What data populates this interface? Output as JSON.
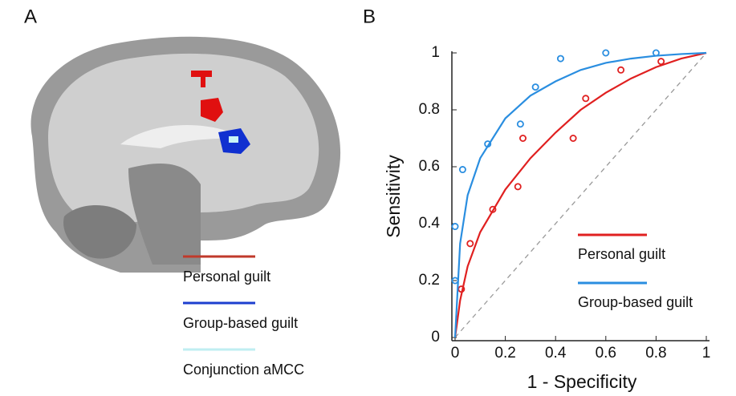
{
  "panel_labels": [
    "A",
    "B"
  ],
  "brain_legend": [
    {
      "name": "Personal guilt",
      "color": "#c0392b"
    },
    {
      "name": "Group-based guilt",
      "color": "#1d3fcf"
    },
    {
      "name": "Conjunction aMCC",
      "color": "#bfeef2"
    }
  ],
  "chart_data": {
    "type": "scatter",
    "x_label": "1 - Specificity",
    "y_label": "Sensitivity",
    "xlim": [
      0,
      1
    ],
    "ylim": [
      0,
      1
    ],
    "xticks": [
      0,
      0.2,
      0.4,
      0.6,
      0.8,
      1
    ],
    "yticks": [
      0,
      0.2,
      0.4,
      0.6,
      0.8,
      1
    ],
    "series": [
      {
        "name": "Personal guilt",
        "color": "#e02020",
        "x": [
          0.025,
          0.06,
          0.15,
          0.25,
          0.27,
          0.47,
          0.52,
          0.66,
          0.82
        ],
        "values": [
          0.17,
          0.33,
          0.45,
          0.53,
          0.7,
          0.7,
          0.84,
          0.94,
          0.97
        ],
        "curve": {
          "x": [
            0,
            0.02,
            0.05,
            0.1,
            0.2,
            0.3,
            0.4,
            0.5,
            0.6,
            0.7,
            0.8,
            0.9,
            1
          ],
          "y": [
            0,
            0.13,
            0.25,
            0.37,
            0.52,
            0.63,
            0.72,
            0.8,
            0.86,
            0.91,
            0.95,
            0.98,
            1
          ]
        }
      },
      {
        "name": "Group-based guilt",
        "color": "#2a8ee0",
        "x": [
          0,
          0,
          0.03,
          0.13,
          0.26,
          0.32,
          0.42,
          0.6,
          0.8
        ],
        "values": [
          0.2,
          0.39,
          0.59,
          0.68,
          0.75,
          0.88,
          0.98,
          1,
          1
        ],
        "curve": {
          "x": [
            0,
            0.02,
            0.05,
            0.1,
            0.2,
            0.3,
            0.4,
            0.5,
            0.6,
            0.7,
            0.8,
            0.9,
            1
          ],
          "y": [
            0,
            0.33,
            0.5,
            0.63,
            0.77,
            0.85,
            0.9,
            0.94,
            0.965,
            0.98,
            0.99,
            0.996,
            1
          ]
        }
      }
    ]
  }
}
